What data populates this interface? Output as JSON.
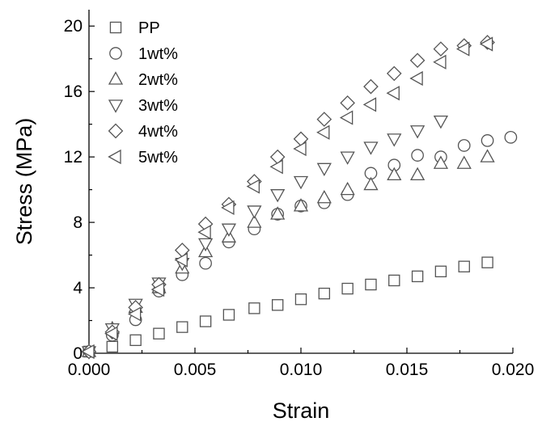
{
  "chart_data": {
    "type": "scatter",
    "xlabel": "Strain",
    "ylabel": "Stress (MPa)",
    "xlim": [
      0.0,
      0.02
    ],
    "ylim": [
      0,
      21
    ],
    "xticks": [
      0.0,
      0.005,
      0.01,
      0.015,
      0.02
    ],
    "xtick_labels": [
      "0.000",
      "0.005",
      "0.010",
      "0.015",
      "0.020"
    ],
    "yticks": [
      0,
      4,
      8,
      12,
      16,
      20
    ],
    "ytick_labels": [
      "0",
      "4",
      "8",
      "12",
      "16",
      "20"
    ],
    "grid": false,
    "legend_position": "top-left",
    "series": [
      {
        "name": "PP",
        "marker": "square",
        "color": "#555555",
        "x": [
          0.0,
          0.0011,
          0.0022,
          0.0033,
          0.0044,
          0.0055,
          0.0066,
          0.0078,
          0.0089,
          0.01,
          0.0111,
          0.0122,
          0.0133,
          0.0144,
          0.0155,
          0.0166,
          0.0177,
          0.0188
        ],
        "y": [
          0.1,
          0.4,
          0.8,
          1.2,
          1.6,
          1.95,
          2.35,
          2.75,
          2.95,
          3.3,
          3.65,
          3.95,
          4.2,
          4.45,
          4.7,
          5.0,
          5.3,
          5.55
        ]
      },
      {
        "name": "1wt%",
        "marker": "circle",
        "color": "#555555",
        "x": [
          0.0,
          0.0011,
          0.0022,
          0.0033,
          0.0044,
          0.0055,
          0.0066,
          0.0078,
          0.0089,
          0.01,
          0.0111,
          0.0122,
          0.0133,
          0.0144,
          0.0155,
          0.0166,
          0.0177,
          0.0188,
          0.0199
        ],
        "y": [
          0.1,
          1.1,
          2.05,
          3.8,
          4.8,
          5.5,
          6.8,
          7.6,
          8.5,
          9.0,
          9.2,
          9.7,
          11.0,
          11.5,
          12.1,
          12.0,
          12.7,
          13.0,
          13.2
        ]
      },
      {
        "name": "2wt%",
        "marker": "triangle-up",
        "color": "#555555",
        "x": [
          0.0,
          0.0011,
          0.0022,
          0.0033,
          0.0044,
          0.0055,
          0.0066,
          0.0078,
          0.0089,
          0.01,
          0.0111,
          0.0122,
          0.0133,
          0.0144,
          0.0155,
          0.0166,
          0.0177,
          0.0188
        ],
        "y": [
          0.1,
          1.5,
          2.8,
          4.0,
          5.2,
          6.2,
          7.1,
          8.0,
          8.5,
          9.0,
          9.5,
          10.0,
          10.3,
          10.9,
          10.9,
          11.6,
          11.6,
          12.0
        ]
      },
      {
        "name": "3wt%",
        "marker": "triangle-down",
        "color": "#555555",
        "x": [
          0.0,
          0.0011,
          0.0022,
          0.0033,
          0.0044,
          0.0055,
          0.0066,
          0.0078,
          0.0089,
          0.01,
          0.0111,
          0.0122,
          0.0133,
          0.0144,
          0.0155,
          0.0166
        ],
        "y": [
          0.1,
          1.5,
          3.0,
          4.3,
          5.5,
          6.7,
          7.6,
          8.7,
          9.7,
          10.5,
          11.3,
          12.0,
          12.6,
          13.1,
          13.6,
          14.2
        ]
      },
      {
        "name": "4wt%",
        "marker": "diamond",
        "color": "#555555",
        "x": [
          0.0,
          0.0011,
          0.0022,
          0.0033,
          0.0044,
          0.0055,
          0.0066,
          0.0078,
          0.0089,
          0.01,
          0.0111,
          0.0122,
          0.0133,
          0.0144,
          0.0155,
          0.0166,
          0.0177,
          0.0188
        ],
        "y": [
          0.1,
          1.3,
          2.8,
          4.2,
          6.3,
          7.9,
          9.1,
          10.5,
          12.0,
          13.1,
          14.3,
          15.3,
          16.3,
          17.1,
          17.9,
          18.6,
          18.8,
          19.0
        ]
      },
      {
        "name": "5wt%",
        "marker": "triangle-left",
        "color": "#555555",
        "x": [
          0.0,
          0.0011,
          0.0022,
          0.0033,
          0.0044,
          0.0055,
          0.0066,
          0.0078,
          0.0089,
          0.01,
          0.0111,
          0.0122,
          0.0133,
          0.0144,
          0.0155,
          0.0166,
          0.0177,
          0.0188
        ],
        "y": [
          0.1,
          1.2,
          2.4,
          3.9,
          5.7,
          7.4,
          8.9,
          10.2,
          11.4,
          12.5,
          13.5,
          14.4,
          15.2,
          15.9,
          16.8,
          17.8,
          18.6,
          18.9
        ]
      }
    ]
  }
}
